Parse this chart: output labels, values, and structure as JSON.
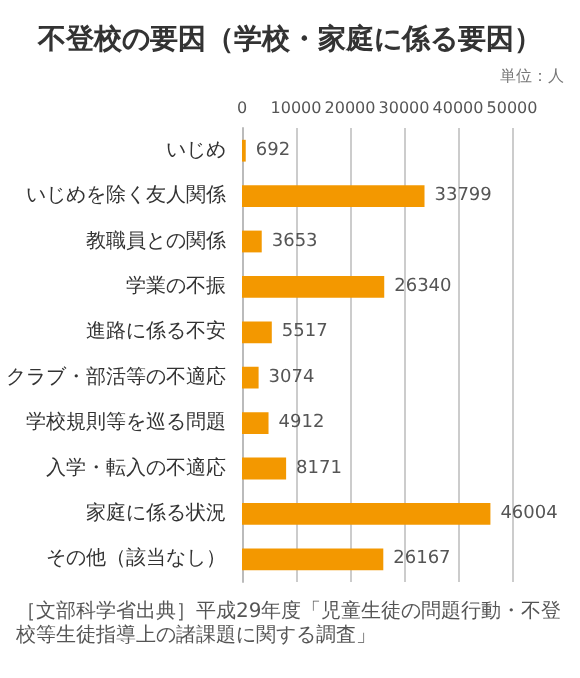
{
  "chart_data": {
    "type": "bar",
    "orientation": "horizontal",
    "title": "不登校の要因（学校・家庭に係る要因）",
    "subtitle": "単位：人",
    "categories": [
      "いじめ",
      "いじめを除く友人関係",
      "教職員との関係",
      "学業の不振",
      "進路に係る不安",
      "クラブ・部活等の不適応",
      "学校規則等を巡る問題",
      "入学・転入の不適応",
      "家庭に係る状況",
      "その他（該当なし）"
    ],
    "values": [
      692,
      33799,
      3653,
      26340,
      5517,
      3074,
      4912,
      8171,
      46004,
      26167
    ],
    "color": "#f39800",
    "data_labels": true,
    "xlim": [
      0,
      50000
    ],
    "xticks": [
      0,
      10000,
      20000,
      30000,
      40000,
      50000
    ],
    "grid": "x",
    "annotations": [
      "［文部科学省出典］平成29年度「児童生徒の問題行動・不登校等生徒指導上の諸課題に関する調査」"
    ]
  }
}
